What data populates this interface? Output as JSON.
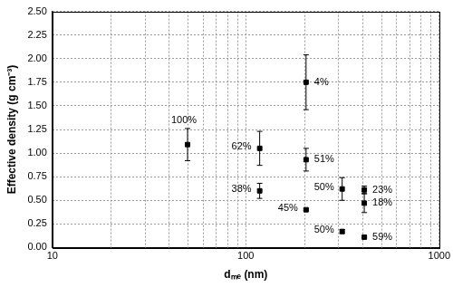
{
  "chart_data": {
    "type": "scatter",
    "x_label": "dₘₑ (nm)",
    "y_label": "Effective density (g cm⁻³)",
    "log": "x",
    "grid": true,
    "xlim": [
      10,
      1000
    ],
    "xticks": [
      10,
      100,
      1000
    ],
    "ylim": [
      0,
      2.5
    ],
    "yticks": [
      {
        "value": 0,
        "label": "0.00"
      },
      {
        "value": 0.25,
        "label": "0.25"
      },
      {
        "value": 0.5,
        "label": "0.50"
      },
      {
        "value": 0.75,
        "label": "0.75"
      },
      {
        "value": 1,
        "label": "1.00"
      },
      {
        "value": 1.25,
        "label": "1.25"
      },
      {
        "value": 1.5,
        "label": "1.50"
      },
      {
        "value": 1.75,
        "label": "1.75"
      },
      {
        "value": 2,
        "label": "2.00"
      },
      {
        "value": 2.25,
        "label": "2.25"
      },
      {
        "value": 2.5,
        "label": "2.50"
      }
    ],
    "series": [
      {
        "color": "#000000",
        "marker": "square",
        "x": [
          50,
          118,
          118,
          205,
          205,
          205,
          315,
          315,
          410,
          410,
          410
        ],
        "values": [
          1.09,
          1.05,
          0.6,
          1.75,
          0.93,
          0.4,
          0.62,
          0.17,
          0.61,
          0.47,
          0.11
        ],
        "errors": [
          0.17,
          0.18,
          0.08,
          0.29,
          0.12,
          0.01,
          0.12,
          0.02,
          0.04,
          0.1,
          0.01
        ],
        "point_labels": [
          "100%",
          "62%",
          "38%",
          "4%",
          "51%",
          "45%",
          "50%",
          "50%",
          "23%",
          "18%",
          "59%"
        ]
      }
    ]
  }
}
